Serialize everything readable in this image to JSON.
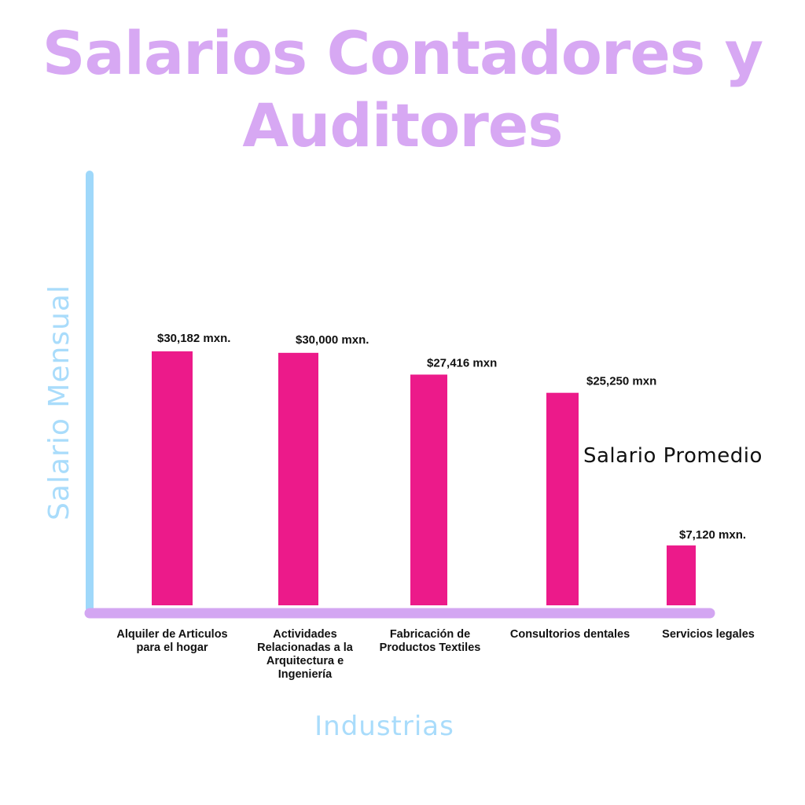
{
  "colors": {
    "title": "#d7a8f3",
    "bars": "#ec1a8a",
    "y_axis_line": "#9fd8fa",
    "x_axis_line": "#d3a6f2",
    "axis_titles": "#a9dcfb",
    "text": "#111111"
  },
  "chart_data": {
    "type": "bar",
    "title": "Salarios Contadores y Auditores",
    "xlabel": "Industrias",
    "ylabel": "Salario Mensual",
    "annotation": "Salario Promedio",
    "categories": [
      [
        "Alquiler de Articulos",
        "para el hogar"
      ],
      [
        "Actividades",
        "Relacionadas a la",
        "Arquitectura e",
        "Ingeniería"
      ],
      [
        "Fabricación de",
        "Productos Textiles"
      ],
      [
        "Consultorios dentales"
      ],
      [
        "Servicios legales"
      ]
    ],
    "values": [
      30182,
      30000,
      27416,
      25250,
      7120
    ],
    "value_labels": [
      "$30,182 mxn.",
      "$30,000 mxn.",
      "$27,416 mxn",
      "$25,250 mxn",
      "$7,120 mxn."
    ],
    "ylim": [
      0,
      51000
    ],
    "grid": false,
    "legend": "none"
  }
}
